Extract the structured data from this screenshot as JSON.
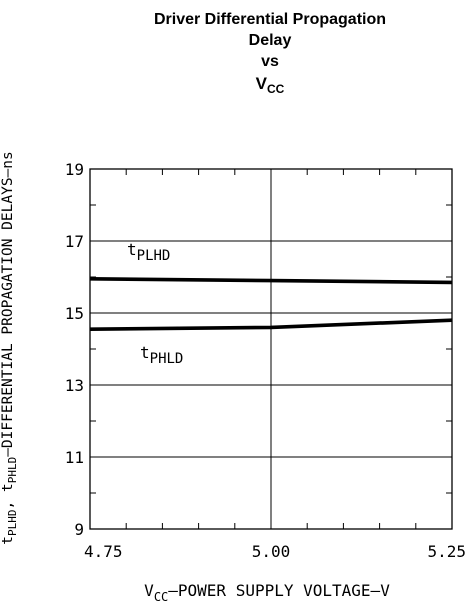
{
  "chart_data": {
    "type": "line",
    "title_lines": [
      "Driver Differential Propagation",
      "Delay",
      "vs"
    ],
    "title_vcc": {
      "main": "V",
      "sub": "CC"
    },
    "xlabel": {
      "pre": "V",
      "sub": "CC",
      "post": "–POWER SUPPLY VOLTAGE–V"
    },
    "ylabel": {
      "parts": [
        {
          "t": "t",
          "sub": false
        },
        {
          "t": "PLHD",
          "sub": true
        },
        {
          "t": ", t",
          "sub": false
        },
        {
          "t": "PHLD",
          "sub": true
        },
        {
          "t": "–DIFFERENTIAL PROPAGATION DELAYS–ns",
          "sub": false
        }
      ]
    },
    "xlim": [
      4.75,
      5.25
    ],
    "ylim": [
      9,
      19
    ],
    "xticks": [
      4.75,
      5.0,
      5.25
    ],
    "xtick_labels": [
      "4.75",
      "5.00",
      "5.25"
    ],
    "yticks": [
      9,
      11,
      13,
      15,
      17,
      19
    ],
    "ytick_labels": [
      "9",
      "11",
      "13",
      "15",
      "17",
      "19"
    ],
    "grid": true,
    "series": [
      {
        "name_main": "t",
        "name_sub": "PLHD",
        "x": [
          4.75,
          5.0,
          5.25
        ],
        "y": [
          15.95,
          15.9,
          15.85
        ]
      },
      {
        "name_main": "t",
        "name_sub": "PHLD",
        "x": [
          4.75,
          5.0,
          5.25
        ],
        "y": [
          14.55,
          14.6,
          14.8
        ]
      }
    ]
  }
}
